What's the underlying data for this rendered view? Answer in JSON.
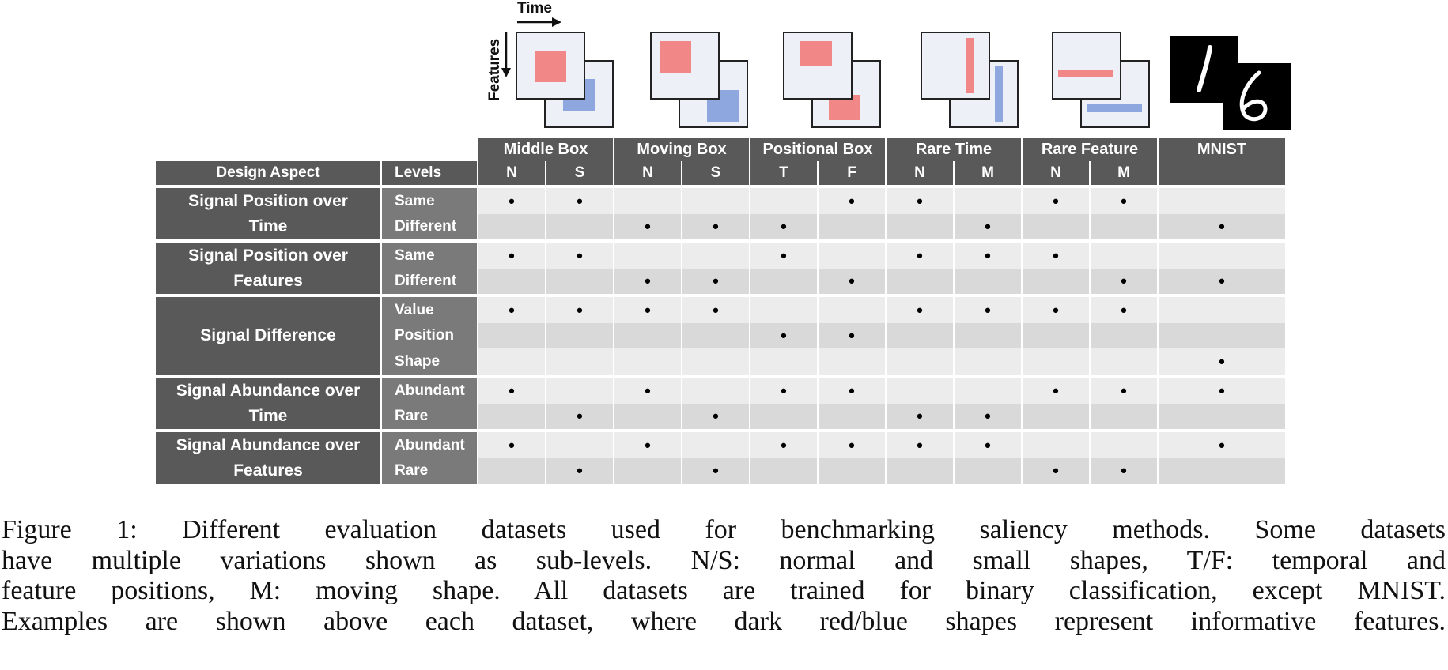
{
  "axes": {
    "time": "Time",
    "features": "Features"
  },
  "columns": {
    "design_aspect": "Design Aspect",
    "levels": "Levels"
  },
  "datasets": [
    {
      "name": "Middle Box",
      "subs": [
        "N",
        "S"
      ]
    },
    {
      "name": "Moving Box",
      "subs": [
        "N",
        "S"
      ]
    },
    {
      "name": "Positional Box",
      "subs": [
        "T",
        "F"
      ]
    },
    {
      "name": "Rare Time",
      "subs": [
        "N",
        "M"
      ]
    },
    {
      "name": "Rare Feature",
      "subs": [
        "N",
        "M"
      ]
    },
    {
      "name": "MNIST",
      "subs": [
        ""
      ]
    }
  ],
  "groups": [
    {
      "aspect": "Signal Position over Time",
      "rows": [
        {
          "level": "Same",
          "marks": [
            1,
            1,
            0,
            0,
            0,
            1,
            1,
            0,
            1,
            1,
            0
          ]
        },
        {
          "level": "Different",
          "marks": [
            0,
            0,
            1,
            1,
            1,
            0,
            0,
            1,
            0,
            0,
            1
          ]
        }
      ]
    },
    {
      "aspect": "Signal Position over Features",
      "rows": [
        {
          "level": "Same",
          "marks": [
            1,
            1,
            0,
            0,
            1,
            0,
            1,
            1,
            1,
            0,
            0
          ]
        },
        {
          "level": "Different",
          "marks": [
            0,
            0,
            1,
            1,
            0,
            1,
            0,
            0,
            0,
            1,
            1
          ]
        }
      ]
    },
    {
      "aspect": "Signal Difference",
      "rows": [
        {
          "level": "Value",
          "marks": [
            1,
            1,
            1,
            1,
            0,
            0,
            1,
            1,
            1,
            1,
            0
          ]
        },
        {
          "level": "Position",
          "marks": [
            0,
            0,
            0,
            0,
            1,
            1,
            0,
            0,
            0,
            0,
            0
          ]
        },
        {
          "level": "Shape",
          "marks": [
            0,
            0,
            0,
            0,
            0,
            0,
            0,
            0,
            0,
            0,
            1
          ]
        }
      ]
    },
    {
      "aspect": "Signal Abundance over Time",
      "rows": [
        {
          "level": "Abundant",
          "marks": [
            1,
            0,
            1,
            0,
            1,
            1,
            0,
            0,
            1,
            1,
            1
          ]
        },
        {
          "level": "Rare",
          "marks": [
            0,
            1,
            0,
            1,
            0,
            0,
            1,
            1,
            0,
            0,
            0
          ]
        }
      ]
    },
    {
      "aspect": "Signal Abundance over Features",
      "rows": [
        {
          "level": "Abundant",
          "marks": [
            1,
            0,
            1,
            0,
            1,
            1,
            1,
            1,
            0,
            0,
            1
          ]
        },
        {
          "level": "Rare",
          "marks": [
            0,
            1,
            0,
            1,
            0,
            0,
            0,
            0,
            1,
            1,
            0
          ]
        }
      ]
    }
  ],
  "mark_symbol": "•",
  "mnist_digits": [
    "1",
    "6"
  ],
  "colors": {
    "header": "#595959",
    "level": "#7a7a7a",
    "light": "#ececec",
    "mid": "#d9d9d9",
    "red": "#f28787",
    "blue": "#8ea8df"
  },
  "caption": {
    "lines": [
      "Figure 1: Different evaluation datasets used for benchmarking saliency methods. Some datasets",
      "have multiple variations shown as sub-levels. N/S: normal and small shapes, T/F: temporal and",
      "feature positions, M: moving shape. All datasets are trained for binary classification, except MNIST.",
      "Examples are shown above each dataset, where dark red/blue shapes represent informative features."
    ]
  }
}
